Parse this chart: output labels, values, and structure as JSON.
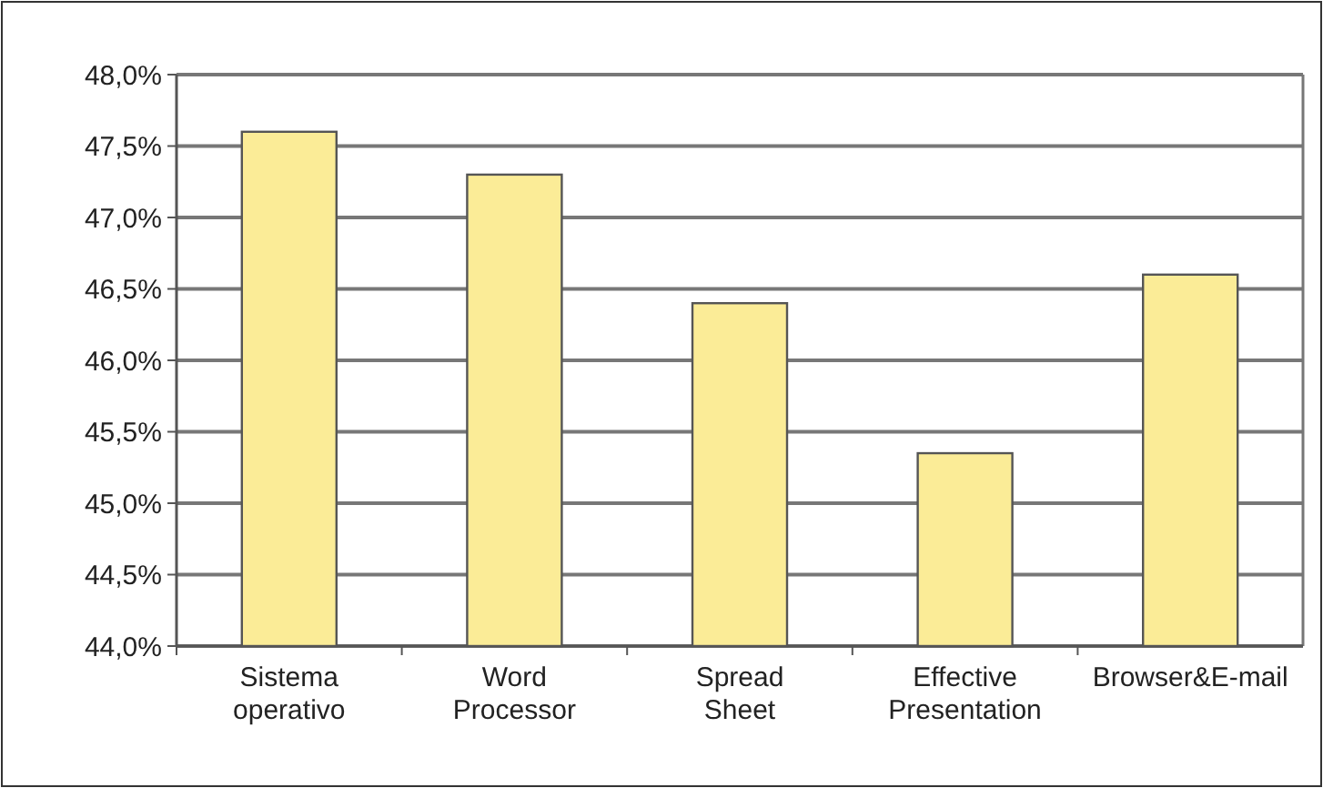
{
  "chart_data": {
    "type": "bar",
    "categories": [
      "Sistema operativo",
      "Word Processor",
      "Spread Sheet",
      "Effective Presentation",
      "Browser&E-mail"
    ],
    "values": [
      47.6,
      47.3,
      46.4,
      45.35,
      46.6
    ],
    "color": "#fbec97",
    "ylim": [
      44,
      48
    ],
    "yticks": [
      {
        "value": 44,
        "label": "44,0%"
      },
      {
        "value": 44.5,
        "label": "44,5%"
      },
      {
        "value": 45,
        "label": "45,0%"
      },
      {
        "value": 45.5,
        "label": "45,5%"
      },
      {
        "value": 46,
        "label": "46,0%"
      },
      {
        "value": 46.5,
        "label": "46,5%"
      },
      {
        "value": 47,
        "label": "47,0%"
      },
      {
        "value": 47.5,
        "label": "47,5%"
      },
      {
        "value": 48,
        "label": "48,0%"
      }
    ],
    "grid": "y"
  }
}
